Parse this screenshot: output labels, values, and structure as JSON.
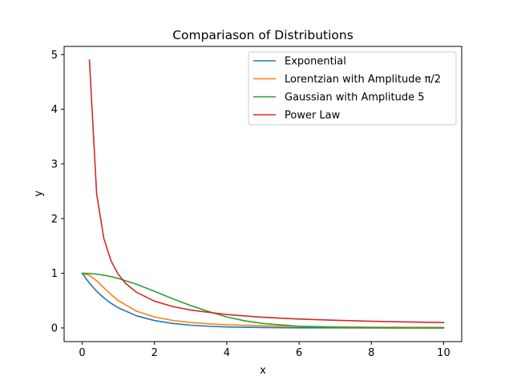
{
  "chart_data": {
    "type": "line",
    "title": "Compariason of Distributions",
    "xlabel": "x",
    "ylabel": "y",
    "xlim": [
      -0.5,
      10.5
    ],
    "ylim": [
      -0.25,
      5.15
    ],
    "xticks": [
      0,
      2,
      4,
      6,
      8,
      10
    ],
    "yticks": [
      0,
      1,
      2,
      3,
      4,
      5
    ],
    "grid": false,
    "legend_position": "top-right",
    "series": [
      {
        "name": "Exponential",
        "color": "#1f77b4",
        "x": [
          0,
          0.2,
          0.4,
          0.6,
          0.8,
          1.0,
          1.5,
          2.0,
          2.5,
          3.0,
          3.5,
          4.0,
          5.0,
          6.0,
          7.0,
          8.0,
          9.0,
          10.0
        ],
        "y": [
          1.0,
          0.819,
          0.67,
          0.549,
          0.449,
          0.368,
          0.223,
          0.135,
          0.082,
          0.05,
          0.03,
          0.018,
          0.007,
          0.002,
          0.001,
          0.0,
          0.0,
          0.0
        ]
      },
      {
        "name": "Lorentzian with Amplitude π/2",
        "color": "#ff7f0e",
        "x": [
          0,
          0.2,
          0.4,
          0.6,
          0.8,
          1.0,
          1.5,
          2.0,
          2.5,
          3.0,
          3.5,
          4.0,
          5.0,
          6.0,
          7.0,
          8.0,
          9.0,
          10.0
        ],
        "y": [
          1.0,
          0.962,
          0.862,
          0.735,
          0.61,
          0.5,
          0.308,
          0.2,
          0.138,
          0.1,
          0.075,
          0.059,
          0.038,
          0.027,
          0.02,
          0.015,
          0.012,
          0.01
        ]
      },
      {
        "name": "Gaussian with Amplitude 5",
        "color": "#2ca02c",
        "x": [
          0,
          0.2,
          0.4,
          0.6,
          0.8,
          1.0,
          1.5,
          2.0,
          2.5,
          3.0,
          3.5,
          4.0,
          4.5,
          5.0,
          6.0,
          7.0,
          8.0,
          9.0,
          10.0
        ],
        "y": [
          1.0,
          0.996,
          0.984,
          0.965,
          0.938,
          0.905,
          0.8,
          0.67,
          0.535,
          0.41,
          0.3,
          0.2,
          0.13,
          0.082,
          0.03,
          0.01,
          0.003,
          0.0,
          0.0
        ]
      },
      {
        "name": "Power Law",
        "color": "#d62728",
        "x": [
          0.2,
          0.4,
          0.6,
          0.8,
          1.0,
          1.2,
          1.5,
          2.0,
          2.5,
          3.0,
          4.0,
          5.0,
          6.0,
          7.0,
          8.0,
          9.0,
          10.0
        ],
        "y": [
          4.9,
          2.45,
          1.633,
          1.225,
          0.98,
          0.817,
          0.653,
          0.49,
          0.392,
          0.327,
          0.245,
          0.196,
          0.163,
          0.14,
          0.1225,
          0.109,
          0.098
        ]
      }
    ]
  }
}
